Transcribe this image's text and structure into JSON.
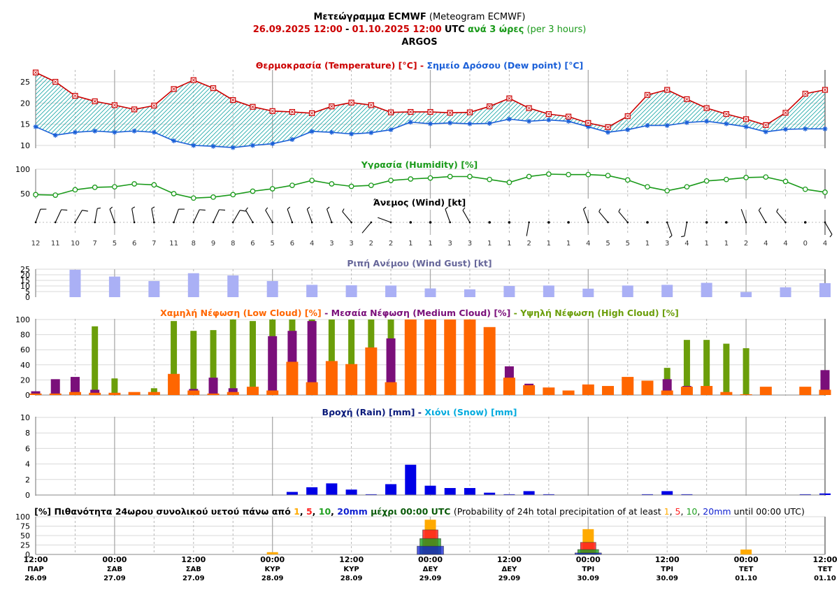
{
  "header": {
    "line1_greek": "Μετεώγραμμα ECMWF",
    "line1_english": "(Meteogram ECMWF)",
    "period_from": "26.09.2025 12:00",
    "dash": "-",
    "period_to": "01.10.2025 12:00",
    "utc": "UTC",
    "step_greek": "ανά 3 ώρες",
    "step_english": "(per 3 hours)",
    "location": "ARGOS"
  },
  "colors": {
    "temperature": "#cc0000",
    "dewpoint": "#1a5fd8",
    "hatch": "#19a6a6",
    "humidity": "#1a9a1a",
    "gust": "#aab0f5",
    "low_cloud": "#ff6600",
    "medium_cloud": "#7a0f7a",
    "high_cloud": "#6b9e0a",
    "rain": "#0000e6",
    "snow": "#00aadd",
    "p1": "#ffaa00",
    "p5": "#ff2020",
    "p10": "#20a020",
    "p20": "#1020d0"
  },
  "time_axis": {
    "labels": [
      {
        "time": "12:00",
        "day": "ΠΑΡ",
        "date": "26.09"
      },
      {
        "time": "00:00",
        "day": "ΣΑΒ",
        "date": "27.09"
      },
      {
        "time": "12:00",
        "day": "ΣΑΒ",
        "date": "27.09"
      },
      {
        "time": "00:00",
        "day": "ΚΥΡ",
        "date": "28.09"
      },
      {
        "time": "12:00",
        "day": "ΚΥΡ",
        "date": "28.09"
      },
      {
        "time": "00:00",
        "day": "ΔΕΥ",
        "date": "29.09"
      },
      {
        "time": "12:00",
        "day": "ΔΕΥ",
        "date": "29.09"
      },
      {
        "time": "00:00",
        "day": "ΤΡΙ",
        "date": "30.09"
      },
      {
        "time": "12:00",
        "day": "ΤΡΙ",
        "date": "30.09"
      },
      {
        "time": "00:00",
        "day": "ΤΕΤ",
        "date": "01.10"
      },
      {
        "time": "12:00",
        "day": "ΤΕΤ",
        "date": "01.10"
      }
    ]
  },
  "chart_data": [
    {
      "type": "line",
      "title_parts": [
        {
          "text": "Θερμοκρασία (Temperature) [°C]",
          "color": "#cc0000"
        },
        {
          "text": " - ",
          "color": "#cc0000"
        },
        {
          "text": "Σημείο Δρόσου (Dew point) [°C]",
          "color": "#1a5fd8"
        }
      ],
      "ylim": [
        9,
        27
      ],
      "yticks": [
        10,
        15,
        20,
        25
      ],
      "grid": true,
      "series": [
        {
          "name": "Θερμοκρασία (Temperature) [°C]",
          "values": [
            27.2,
            25.0,
            21.7,
            20.4,
            19.5,
            18.5,
            19.4,
            23.3,
            25.4,
            23.5,
            20.7,
            19.1,
            18.1,
            17.9,
            17.6,
            19.2,
            20.1,
            19.5,
            17.8,
            17.9,
            17.9,
            17.7,
            17.8,
            19.2,
            21.1,
            18.8,
            17.4,
            16.8,
            15.3,
            14.3,
            16.9,
            21.9,
            23.1,
            20.9,
            18.8,
            17.4,
            16.2,
            14.8,
            17.7,
            22.2,
            23.1
          ]
        },
        {
          "name": "Σημείο Δρόσου (Dew point) [°C]",
          "values": [
            14.4,
            12.4,
            13.1,
            13.4,
            13.1,
            13.4,
            13.1,
            11.1,
            10.0,
            9.8,
            9.5,
            10.0,
            10.4,
            11.4,
            13.3,
            13.1,
            12.7,
            13.0,
            13.7,
            15.5,
            15.1,
            15.3,
            15.1,
            15.2,
            16.2,
            15.7,
            16.0,
            15.7,
            14.4,
            13.1,
            13.7,
            14.7,
            14.7,
            15.4,
            15.7,
            15.1,
            14.4,
            13.2,
            13.8,
            13.9,
            13.9
          ]
        }
      ]
    },
    {
      "type": "line",
      "title": "Υγρασία (Humidity) [%]",
      "ylim": [
        35,
        100
      ],
      "yticks": [
        50,
        100
      ],
      "series": [
        {
          "name": "Υγρασία (Humidity) [%]",
          "values": [
            48,
            47,
            58,
            63,
            64,
            70,
            68,
            50,
            41,
            43,
            48,
            55,
            60,
            67,
            77,
            70,
            65,
            67,
            77,
            80,
            82,
            85,
            85,
            79,
            73,
            85,
            90,
            89,
            89,
            87,
            78,
            64,
            56,
            64,
            76,
            79,
            83,
            84,
            75,
            59,
            53
          ]
        }
      ]
    },
    {
      "type": "table",
      "title": "Άνεμος (Wind) [kt]",
      "values": [
        12,
        11,
        10,
        7,
        5,
        6,
        7,
        11,
        8,
        9,
        8,
        6,
        5,
        6,
        4,
        3,
        3,
        2,
        2,
        1,
        1,
        3,
        3,
        1,
        1,
        2,
        1,
        1,
        4,
        5,
        5,
        1,
        3,
        4,
        1,
        1,
        2,
        4,
        4,
        0,
        4
      ],
      "directions_deg": [
        20,
        25,
        30,
        10,
        340,
        350,
        350,
        20,
        25,
        25,
        30,
        330,
        330,
        340,
        340,
        340,
        320,
        220,
        290,
        270,
        330,
        340,
        330,
        320,
        0,
        190,
        0,
        0,
        340,
        320,
        320,
        0,
        160,
        190,
        0,
        0,
        340,
        330,
        320,
        0,
        150
      ]
    },
    {
      "type": "bar",
      "title": "Ριπή Ανέμου (Wind Gust) [kt]",
      "ylim": [
        0,
        25
      ],
      "yticks": [
        0,
        5,
        10,
        15,
        20,
        25
      ],
      "series": [
        {
          "name": "Ριπή Ανέμου (Wind Gust) [kt]",
          "values": [
            null,
            null,
            24.5,
            null,
            18.4,
            null,
            14.4,
            null,
            21.4,
            null,
            19.4,
            null,
            14.4,
            null,
            11.0,
            null,
            10.6,
            null,
            10.4,
            null,
            7.8,
            null,
            7.0,
            null,
            10.0,
            null,
            10.4,
            null,
            7.6,
            null,
            10.4,
            null,
            11.0,
            null,
            12.8,
            null,
            4.6,
            null,
            8.8,
            null,
            12.5
          ]
        }
      ]
    },
    {
      "type": "bar",
      "title_parts": [
        {
          "text": "Χαμηλή Νέφωση (Low Cloud) [%]",
          "color": "#ff6600"
        },
        {
          "text": " - ",
          "color": "#7a0f7a"
        },
        {
          "text": "Μεσαία Νέφωση (Medium Cloud) [%]",
          "color": "#7a0f7a"
        },
        {
          "text": " - ",
          "color": "#6b9e0a"
        },
        {
          "text": "Υψηλή Νέφωση (High Cloud) [%]",
          "color": "#6b9e0a"
        }
      ],
      "ylim": [
        0,
        100
      ],
      "yticks": [
        0,
        20,
        40,
        60,
        80,
        100
      ],
      "series": [
        {
          "name": "Υψηλή Νέφωση (High Cloud) [%]",
          "values": [
            0,
            0,
            0,
            91,
            22,
            0,
            9,
            98,
            85,
            86,
            100,
            98,
            100,
            100,
            100,
            100,
            100,
            100,
            100,
            0,
            0,
            0,
            0,
            0,
            0,
            0,
            0,
            0,
            0,
            0,
            0,
            0,
            36,
            73,
            73,
            68,
            62,
            0,
            0,
            0,
            0
          ]
        },
        {
          "name": "Μεσαία Νέφωση (Medium Cloud) [%]",
          "values": [
            5,
            21,
            24,
            7,
            2,
            0,
            0,
            0,
            8,
            23,
            9,
            0,
            78,
            85,
            98,
            0,
            0,
            0,
            75,
            0,
            0,
            0,
            0,
            0,
            38,
            15,
            0,
            0,
            0,
            0,
            0,
            0,
            21,
            12,
            0,
            0,
            0,
            0,
            0,
            0,
            33
          ]
        },
        {
          "name": "Χαμηλή Νέφωση (Low Cloud) [%]",
          "values": [
            2,
            2,
            4,
            3,
            3,
            4,
            4,
            28,
            6,
            2,
            4,
            11,
            6,
            44,
            17,
            45,
            41,
            63,
            17,
            100,
            100,
            100,
            100,
            90,
            23,
            13,
            10,
            6,
            14,
            12,
            24,
            19,
            6,
            11,
            12,
            4,
            1,
            11,
            0,
            11,
            7
          ]
        }
      ]
    },
    {
      "type": "bar",
      "title_parts": [
        {
          "text": "Βροχή (Rain) [mm]",
          "color": "#0a1a7a"
        },
        {
          "text": " - ",
          "color": "#0a1a7a"
        },
        {
          "text": "Χιόνι (Snow) [mm]",
          "color": "#00aadd"
        }
      ],
      "ylim": [
        0,
        10
      ],
      "yticks": [
        0,
        2,
        4,
        6,
        8,
        10
      ],
      "series": [
        {
          "name": "Βροχή (Rain) [mm]",
          "values": [
            0,
            0,
            0,
            0,
            0,
            0,
            0,
            0,
            0,
            0,
            0,
            0,
            0,
            0.4,
            1.0,
            1.5,
            0.7,
            0.1,
            1.4,
            3.9,
            1.2,
            0.9,
            0.9,
            0.3,
            0.1,
            0.5,
            0.1,
            0,
            0,
            0,
            0,
            0.1,
            0.5,
            0.1,
            0,
            0,
            0,
            0,
            0,
            0.1,
            0.2
          ]
        },
        {
          "name": "Χιόνι (Snow) [mm]",
          "values": [
            0,
            0,
            0,
            0,
            0,
            0,
            0,
            0,
            0,
            0,
            0,
            0,
            0,
            0,
            0,
            0,
            0,
            0,
            0,
            0,
            0,
            0,
            0,
            0,
            0,
            0,
            0,
            0,
            0,
            0,
            0,
            0,
            0,
            0,
            0,
            0,
            0,
            0,
            0,
            0,
            0
          ]
        }
      ]
    },
    {
      "type": "bar",
      "title_prefix": "[%] Πιθανότητα 24ωρου συνολικού υετού πάνω από",
      "title_until": "μέχρι 00:00 UTC",
      "title_en_prefix": "(Probability of 24h total precipitation of at least",
      "title_en_until": "until 00:00 UTC)",
      "thresholds": [
        "1",
        "5",
        "10",
        "20mm"
      ],
      "categories": [
        "28.09 00:00",
        "29.09 00:00",
        "30.09 00:00",
        "01.10 00:00"
      ],
      "ylim": [
        0,
        100
      ],
      "yticks": [
        0,
        25,
        50,
        75,
        100
      ],
      "series": [
        {
          "name": "1",
          "values": [
            6,
            92,
            67,
            13
          ]
        },
        {
          "name": "5",
          "values": [
            0,
            65,
            32,
            0
          ]
        },
        {
          "name": "10",
          "values": [
            0,
            42,
            13,
            0
          ]
        },
        {
          "name": "20mm",
          "values": [
            0,
            22,
            4,
            0
          ]
        }
      ]
    }
  ]
}
